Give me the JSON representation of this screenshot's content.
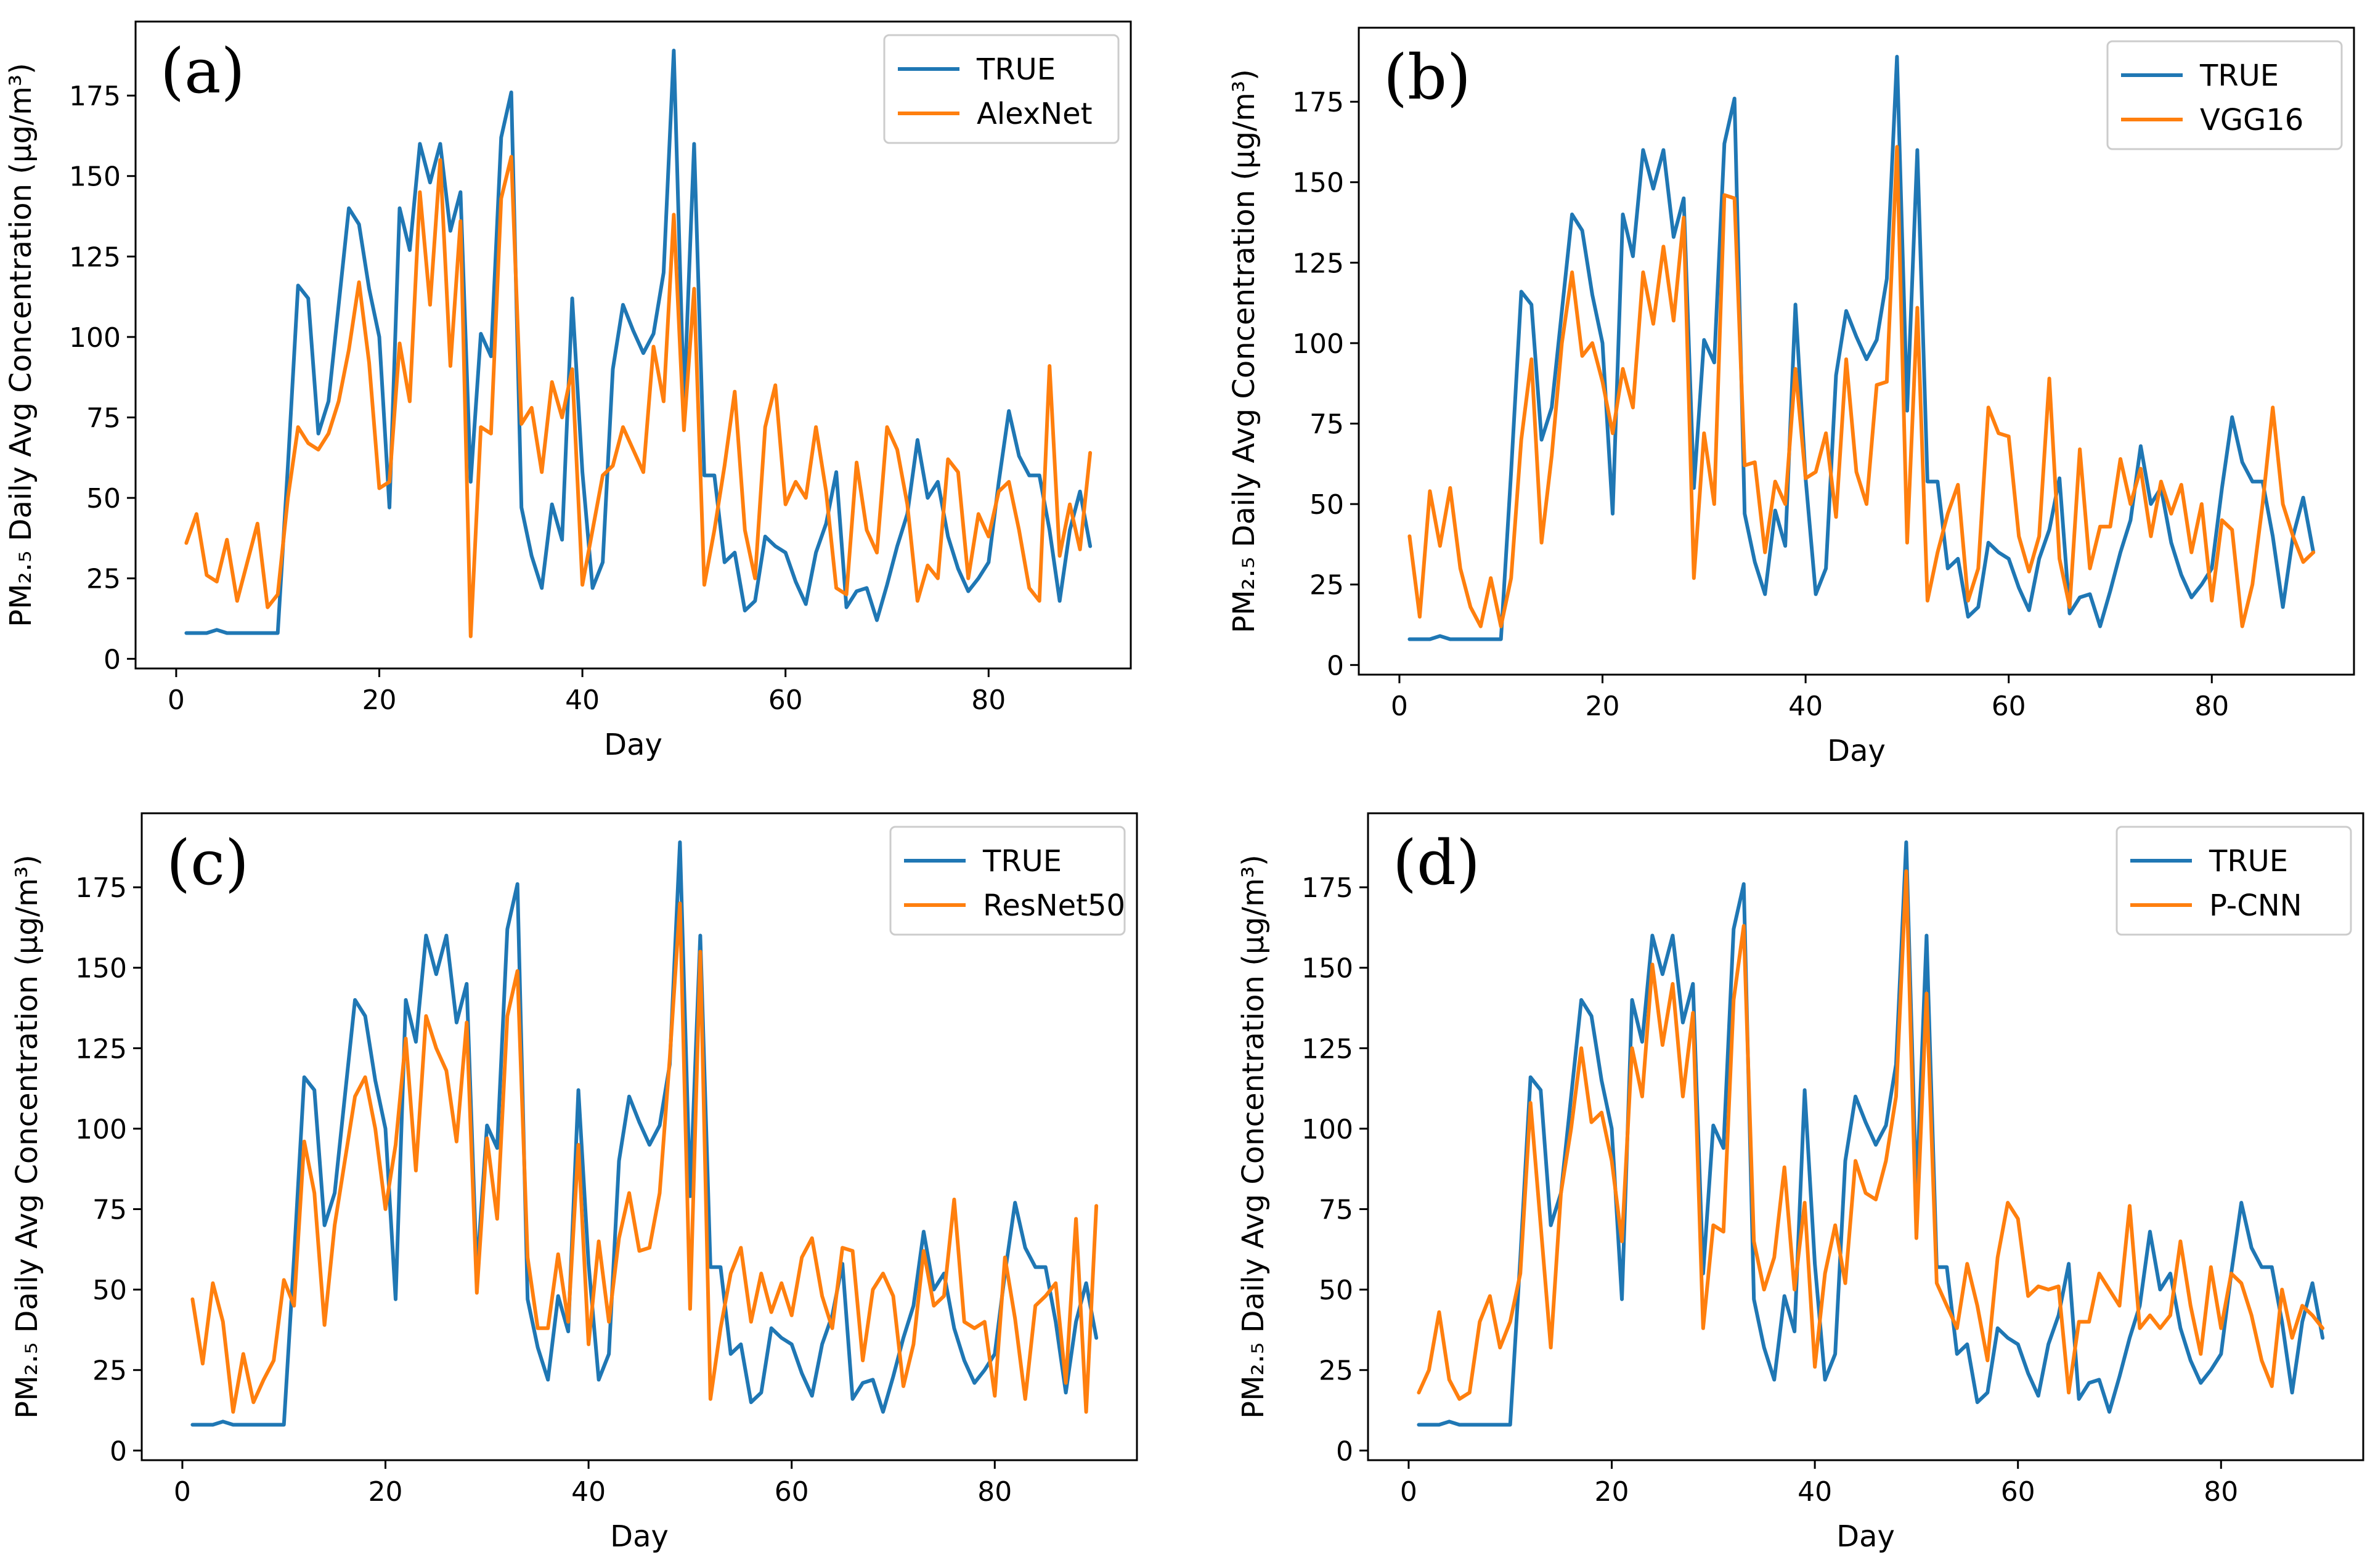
{
  "figure": {
    "panels": [
      "(a)",
      "(b)",
      "(c)",
      "(d)"
    ]
  },
  "colors": {
    "true_series": "#1f77b4",
    "model_series": "#ff7f0e",
    "legend_border": "#cccccc",
    "axes": "#000000"
  },
  "chart_data": [
    {
      "type": "line",
      "panel_label": "(a)",
      "xlabel": "Day",
      "ylabel": "PM₂.₅ Daily Avg Concentration (μg/m³)",
      "xlim": [
        -4,
        94
      ],
      "ylim": [
        -3,
        198
      ],
      "xticks": [
        0,
        20,
        40,
        60,
        80
      ],
      "yticks": [
        0,
        25,
        50,
        75,
        100,
        125,
        150,
        175
      ],
      "legend_position": "top-right",
      "series": [
        {
          "name": "TRUE",
          "color": "#1f77b4",
          "values": [
            8,
            8,
            8,
            9,
            8,
            8,
            8,
            8,
            8,
            8,
            60,
            116,
            112,
            70,
            80,
            110,
            140,
            135,
            115,
            100,
            47,
            140,
            127,
            160,
            148,
            160,
            133,
            145,
            55,
            101,
            94,
            162,
            176,
            47,
            32,
            22,
            48,
            37,
            112,
            58,
            22,
            30,
            90,
            110,
            102,
            95,
            101,
            120,
            189,
            79,
            160,
            57,
            57,
            30,
            33,
            15,
            18,
            38,
            35,
            33,
            24,
            17,
            33,
            42,
            58,
            16,
            21,
            22,
            12,
            23,
            35,
            45,
            68,
            50,
            55,
            38,
            28,
            21,
            25,
            30,
            55,
            77,
            63,
            57,
            57,
            40,
            18,
            40,
            52,
            35
          ]
        },
        {
          "name": "AlexNet",
          "color": "#ff7f0e",
          "values": [
            36,
            45,
            26,
            24,
            37,
            18,
            30,
            42,
            16,
            20,
            50,
            72,
            67,
            65,
            70,
            80,
            96,
            117,
            92,
            53,
            55,
            98,
            80,
            145,
            110,
            155,
            91,
            136,
            7,
            72,
            70,
            143,
            156,
            73,
            78,
            58,
            86,
            75,
            90,
            23,
            40,
            57,
            60,
            72,
            65,
            58,
            97,
            80,
            138,
            71,
            115,
            23,
            40,
            60,
            83,
            40,
            25,
            72,
            85,
            48,
            55,
            50,
            72,
            52,
            22,
            20,
            61,
            40,
            33,
            72,
            65,
            48,
            18,
            29,
            25,
            62,
            58,
            25,
            45,
            38,
            52,
            55,
            40,
            22,
            18,
            91,
            32,
            48,
            34,
            64
          ]
        }
      ]
    },
    {
      "type": "line",
      "panel_label": "(b)",
      "xlabel": "Day",
      "ylabel": "PM₂.₅ Daily Avg Concentration (μg/m³)",
      "xlim": [
        -4,
        94
      ],
      "ylim": [
        -3,
        198
      ],
      "xticks": [
        0,
        20,
        40,
        60,
        80
      ],
      "yticks": [
        0,
        25,
        50,
        75,
        100,
        125,
        150,
        175
      ],
      "legend_position": "top-right",
      "series": [
        {
          "name": "TRUE",
          "color": "#1f77b4",
          "values": [
            8,
            8,
            8,
            9,
            8,
            8,
            8,
            8,
            8,
            8,
            60,
            116,
            112,
            70,
            80,
            110,
            140,
            135,
            115,
            100,
            47,
            140,
            127,
            160,
            148,
            160,
            133,
            145,
            55,
            101,
            94,
            162,
            176,
            47,
            32,
            22,
            48,
            37,
            112,
            58,
            22,
            30,
            90,
            110,
            102,
            95,
            101,
            120,
            189,
            79,
            160,
            57,
            57,
            30,
            33,
            15,
            18,
            38,
            35,
            33,
            24,
            17,
            33,
            42,
            58,
            16,
            21,
            22,
            12,
            23,
            35,
            45,
            68,
            50,
            55,
            38,
            28,
            21,
            25,
            30,
            55,
            77,
            63,
            57,
            57,
            40,
            18,
            40,
            52,
            35
          ]
        },
        {
          "name": "VGG16",
          "color": "#ff7f0e",
          "values": [
            40,
            15,
            54,
            37,
            55,
            30,
            18,
            12,
            27,
            12,
            27,
            70,
            95,
            38,
            65,
            100,
            122,
            96,
            100,
            88,
            72,
            92,
            80,
            122,
            106,
            130,
            107,
            139,
            27,
            72,
            50,
            146,
            145,
            62,
            63,
            35,
            57,
            50,
            92,
            58,
            60,
            72,
            46,
            95,
            60,
            50,
            87,
            88,
            161,
            38,
            111,
            20,
            35,
            47,
            56,
            20,
            30,
            80,
            72,
            71,
            40,
            29,
            40,
            89,
            33,
            18,
            67,
            30,
            43,
            43,
            64,
            50,
            61,
            40,
            57,
            47,
            56,
            35,
            50,
            20,
            45,
            42,
            12,
            25,
            50,
            80,
            50,
            40,
            32,
            35
          ]
        }
      ]
    },
    {
      "type": "line",
      "panel_label": "(c)",
      "xlabel": "Day",
      "ylabel": "PM₂.₅ Daily Avg Concentration (μg/m³)",
      "xlim": [
        -4,
        94
      ],
      "ylim": [
        -3,
        198
      ],
      "xticks": [
        0,
        20,
        40,
        60,
        80
      ],
      "yticks": [
        0,
        25,
        50,
        75,
        100,
        125,
        150,
        175
      ],
      "legend_position": "top-right",
      "series": [
        {
          "name": "TRUE",
          "color": "#1f77b4",
          "values": [
            8,
            8,
            8,
            9,
            8,
            8,
            8,
            8,
            8,
            8,
            60,
            116,
            112,
            70,
            80,
            110,
            140,
            135,
            115,
            100,
            47,
            140,
            127,
            160,
            148,
            160,
            133,
            145,
            55,
            101,
            94,
            162,
            176,
            47,
            32,
            22,
            48,
            37,
            112,
            58,
            22,
            30,
            90,
            110,
            102,
            95,
            101,
            120,
            189,
            79,
            160,
            57,
            57,
            30,
            33,
            15,
            18,
            38,
            35,
            33,
            24,
            17,
            33,
            42,
            58,
            16,
            21,
            22,
            12,
            23,
            35,
            45,
            68,
            50,
            55,
            38,
            28,
            21,
            25,
            30,
            55,
            77,
            63,
            57,
            57,
            40,
            18,
            40,
            52,
            35
          ]
        },
        {
          "name": "ResNet50",
          "color": "#ff7f0e",
          "values": [
            47,
            27,
            52,
            40,
            12,
            30,
            15,
            22,
            28,
            53,
            45,
            96,
            80,
            39,
            70,
            90,
            110,
            116,
            100,
            75,
            95,
            128,
            87,
            135,
            125,
            118,
            96,
            133,
            49,
            97,
            72,
            135,
            149,
            60,
            38,
            38,
            61,
            40,
            95,
            33,
            65,
            40,
            66,
            80,
            62,
            63,
            80,
            122,
            170,
            44,
            155,
            16,
            38,
            55,
            63,
            40,
            55,
            43,
            52,
            42,
            60,
            66,
            48,
            38,
            63,
            62,
            28,
            50,
            55,
            48,
            20,
            33,
            62,
            45,
            48,
            78,
            40,
            38,
            40,
            17,
            60,
            41,
            16,
            45,
            48,
            52,
            21,
            72,
            12,
            76
          ]
        }
      ]
    },
    {
      "type": "line",
      "panel_label": "(d)",
      "xlabel": "Day",
      "ylabel": "PM₂.₅ Daily Avg Concentration (μg/m³)",
      "xlim": [
        -4,
        94
      ],
      "ylim": [
        -3,
        198
      ],
      "xticks": [
        0,
        20,
        40,
        60,
        80
      ],
      "yticks": [
        0,
        25,
        50,
        75,
        100,
        125,
        150,
        175
      ],
      "legend_position": "top-right",
      "series": [
        {
          "name": "TRUE",
          "color": "#1f77b4",
          "values": [
            8,
            8,
            8,
            9,
            8,
            8,
            8,
            8,
            8,
            8,
            60,
            116,
            112,
            70,
            80,
            110,
            140,
            135,
            115,
            100,
            47,
            140,
            127,
            160,
            148,
            160,
            133,
            145,
            55,
            101,
            94,
            162,
            176,
            47,
            32,
            22,
            48,
            37,
            112,
            58,
            22,
            30,
            90,
            110,
            102,
            95,
            101,
            120,
            189,
            79,
            160,
            57,
            57,
            30,
            33,
            15,
            18,
            38,
            35,
            33,
            24,
            17,
            33,
            42,
            58,
            16,
            21,
            22,
            12,
            23,
            35,
            45,
            68,
            50,
            55,
            38,
            28,
            21,
            25,
            30,
            55,
            77,
            63,
            57,
            57,
            40,
            18,
            40,
            52,
            35
          ]
        },
        {
          "name": "P-CNN",
          "color": "#ff7f0e",
          "values": [
            18,
            25,
            43,
            22,
            16,
            18,
            40,
            48,
            32,
            40,
            55,
            108,
            70,
            32,
            80,
            100,
            125,
            102,
            105,
            90,
            65,
            125,
            110,
            151,
            126,
            145,
            110,
            136,
            38,
            70,
            68,
            140,
            163,
            65,
            50,
            60,
            88,
            50,
            77,
            26,
            55,
            70,
            52,
            90,
            80,
            78,
            90,
            110,
            180,
            66,
            142,
            52,
            45,
            38,
            58,
            45,
            28,
            60,
            77,
            72,
            48,
            51,
            50,
            51,
            18,
            40,
            40,
            55,
            50,
            45,
            76,
            38,
            42,
            38,
            42,
            65,
            45,
            30,
            57,
            38,
            55,
            52,
            42,
            28,
            20,
            50,
            35,
            45,
            42,
            38
          ]
        }
      ]
    }
  ]
}
